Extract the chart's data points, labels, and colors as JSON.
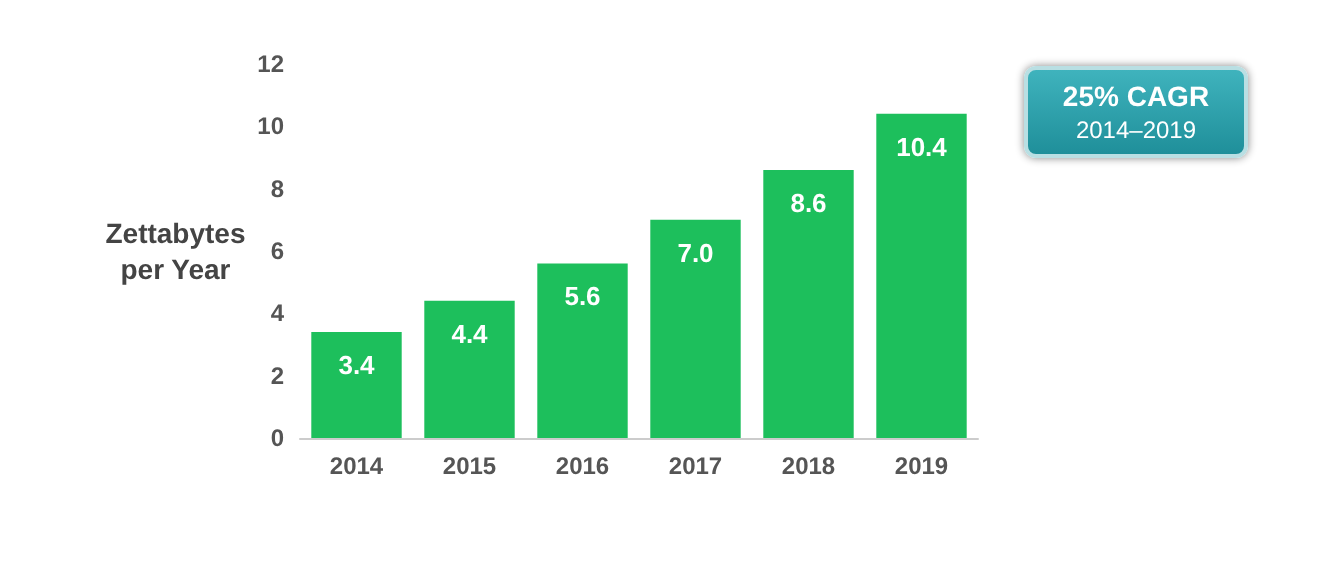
{
  "chart_data": {
    "type": "bar",
    "ylabel": "Zettabytes\nper Year",
    "categories": [
      "2014",
      "2015",
      "2016",
      "2017",
      "2018",
      "2019"
    ],
    "values": [
      3.4,
      4.4,
      5.6,
      7.0,
      8.6,
      10.4
    ],
    "color": "#1dbf5c",
    "value_labels": [
      "3.4",
      "4.4",
      "5.6",
      "7.0",
      "8.6",
      "10.4"
    ],
    "ylim": [
      0,
      12
    ],
    "yticks": [
      0,
      2,
      4,
      6,
      8,
      10,
      12
    ],
    "grid": false,
    "annotations": [
      "25% CAGR",
      "2014–2019"
    ]
  }
}
